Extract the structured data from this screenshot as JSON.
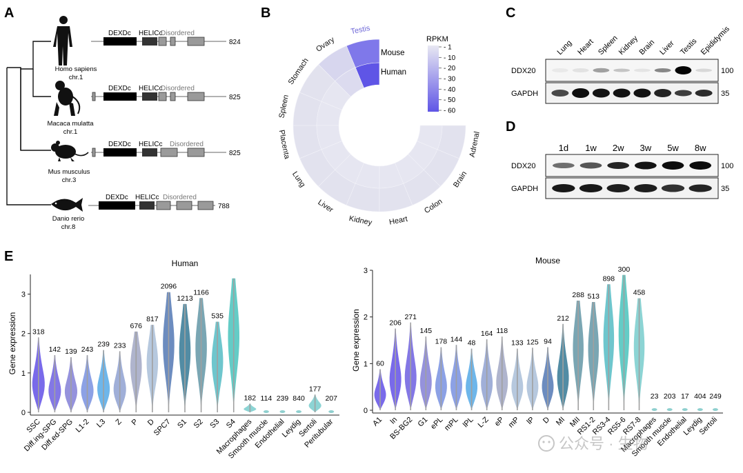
{
  "panel_labels": {
    "A": "A",
    "B": "B",
    "C": "C",
    "D": "D",
    "E": "E"
  },
  "panelA": {
    "domain_labels": {
      "dexd": "DEXDc",
      "helic": "HELICc",
      "disordered": "Disordered"
    },
    "species": [
      {
        "name": "Homo sapiens",
        "chr": "chr.1",
        "length": "824"
      },
      {
        "name": "Macaca mulatta",
        "chr": "chr.1",
        "length": "825"
      },
      {
        "name": "Mus musculus",
        "chr": "chr.3",
        "length": "825"
      },
      {
        "name": "Danio rerio",
        "chr": "chr.8",
        "length": "788"
      }
    ]
  },
  "panelB": {
    "legend_title": "RPKM",
    "legend_ticks": [
      "1",
      "10",
      "20",
      "30",
      "40",
      "50",
      "60"
    ],
    "ring_labels": {
      "outer": "Mouse",
      "inner": "Human"
    },
    "tissues": [
      "Testis",
      "Ovary",
      "Stomach",
      "Spleen",
      "Placenta",
      "Lung",
      "Liver",
      "Kidney",
      "Heart",
      "Colon",
      "Brain",
      "Adrenal"
    ],
    "colors": {
      "low": "#e8e8f2",
      "high": "#5f55e6"
    }
  },
  "panelC": {
    "lanes": [
      "Lung",
      "Heart",
      "Spleen",
      "Kidney",
      "Brain",
      "Liver",
      "Testis",
      "Epididymis"
    ],
    "rows": [
      "DDX20",
      "GAPDH"
    ],
    "markers": [
      "100",
      "35"
    ]
  },
  "panelD": {
    "lanes": [
      "1d",
      "1w",
      "2w",
      "3w",
      "5w",
      "8w"
    ],
    "rows": [
      "DDX20",
      "GAPDH"
    ],
    "markers": [
      "100",
      "35"
    ]
  },
  "panelE": {
    "ylabel": "Gene expression",
    "human": {
      "title": "Human",
      "categories": [
        "SSC",
        "Diff.ing-SPG",
        "Diff.ed-SPG",
        "L1-2",
        "L3",
        "Z",
        "P",
        "D",
        "SPC7",
        "S1",
        "S2",
        "S3",
        "S4",
        "Macrophages",
        "Smooth muscle",
        "Endothelial",
        "Leydig",
        "Sertoli",
        "Peritubular"
      ],
      "counts": [
        "318",
        "142",
        "139",
        "243",
        "239",
        "233",
        "676",
        "817",
        "2096",
        "1213",
        "1166",
        "535",
        "",
        "182",
        "114",
        "239",
        "840",
        "177",
        "207"
      ],
      "ymax": [
        1.9,
        1.45,
        1.4,
        1.45,
        1.58,
        1.55,
        2.05,
        2.22,
        3.05,
        2.75,
        2.9,
        2.3,
        3.4,
        0.22,
        0.02,
        0.02,
        0.02,
        0.45,
        0.02
      ],
      "yticks": [
        "0",
        "1",
        "2",
        "3"
      ]
    },
    "mouse": {
      "title": "Mouse",
      "categories": [
        "A1",
        "In",
        "BS-BG2",
        "G1",
        "ePL",
        "mPL",
        "lPL",
        "L-Z",
        "eP",
        "mP",
        "lP",
        "D",
        "MI",
        "MII",
        "RS1-2",
        "RS3-4",
        "RS5-6",
        "RS7-8",
        "Macrophages",
        "Smooth muscle",
        "Endothelial",
        "Leydig",
        "Sertoli"
      ],
      "counts": [
        "60",
        "206",
        "271",
        "145",
        "178",
        "144",
        "48",
        "164",
        "118",
        "133",
        "125",
        "94",
        "212",
        "288",
        "513",
        "898",
        "300",
        "458",
        "23",
        "203",
        "17",
        "404",
        "249"
      ],
      "ymax": [
        0.88,
        1.75,
        1.88,
        1.58,
        1.35,
        1.4,
        1.32,
        1.52,
        1.58,
        1.32,
        1.34,
        1.35,
        1.85,
        2.35,
        2.32,
        2.7,
        2.9,
        2.4,
        0.03,
        0.03,
        0.03,
        0.03,
        0.03
      ],
      "yticks": [
        "0",
        "1",
        "2",
        "3"
      ]
    },
    "colors": [
      "#6a5ae8",
      "#7568e2",
      "#8a86d8",
      "#7f97e2",
      "#5eaee8",
      "#96a6d4",
      "#a6acc8",
      "#aec2da",
      "#5c7fb8",
      "#3f7f9a",
      "#6c9cab",
      "#5ec0c8",
      "#53c6c0",
      "#7fcfcf"
    ]
  },
  "watermark": "公众号 · 生物"
}
